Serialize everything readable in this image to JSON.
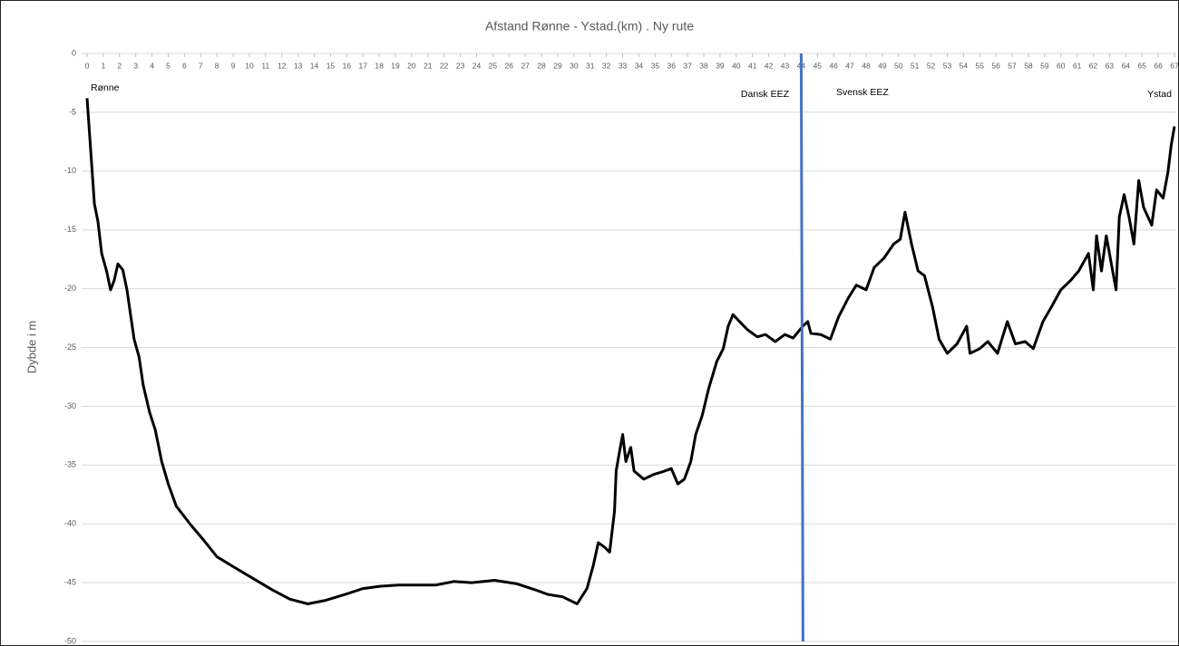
{
  "chart_data": {
    "type": "line",
    "title": "Afstand Rønne - Ystad.(km) . Ny rute",
    "y_label": "Dybde i m",
    "annotations": [
      "Rønne",
      "Dansk EEZ",
      "Svensk EEZ",
      "Ystad"
    ],
    "xlim": [
      0,
      67
    ],
    "xticks": [
      0,
      1,
      2,
      3,
      4,
      5,
      6,
      7,
      8,
      9,
      10,
      11,
      12,
      13,
      14,
      15,
      16,
      17,
      18,
      19,
      20,
      21,
      22,
      23,
      24,
      25,
      26,
      27,
      28,
      29,
      30,
      31,
      32,
      33,
      34,
      35,
      36,
      37,
      38,
      39,
      40,
      41,
      42,
      43,
      44,
      45,
      46,
      47,
      48,
      49,
      50,
      51,
      52,
      53,
      54,
      55,
      56,
      57,
      58,
      59,
      60,
      61,
      62,
      63,
      64,
      65,
      66,
      67
    ],
    "ylim": [
      -50,
      0
    ],
    "yticks": [
      0,
      -5,
      -10,
      -15,
      -20,
      -25,
      -30,
      -35,
      -40,
      -45,
      -50
    ],
    "grid": true,
    "eez_border": {
      "x": 44,
      "color": "#4472c4"
    },
    "series": [
      {
        "color": "#000000",
        "x": [
          0,
          0.2,
          0.45,
          0.67,
          0.9,
          1.2,
          1.45,
          1.67,
          1.9,
          2.2,
          2.46,
          2.7,
          2.9,
          3.2,
          3.46,
          3.85,
          4.2,
          4.6,
          5,
          5.5,
          6.4,
          7.2,
          8,
          9.2,
          10.3,
          11.4,
          12.5,
          13.6,
          14.7,
          15.9,
          17,
          18.1,
          19.2,
          21.5,
          22.6,
          23.7,
          25.1,
          26.5,
          27.6,
          28.4,
          29.3,
          30.2,
          30.8,
          31.2,
          31.5,
          31.9,
          32.2,
          32.5,
          32.6,
          32.8,
          33,
          33.2,
          33.5,
          33.7,
          34.3,
          34.9,
          35.4,
          36,
          36.4,
          36.8,
          37.2,
          37.5,
          37.9,
          38.3,
          38.8,
          39.2,
          39.5,
          39.8,
          40.2,
          40.7,
          41.3,
          41.8,
          42.4,
          43,
          43.5,
          44.1,
          44.4,
          44.6,
          45.2,
          45.8,
          46.3,
          46.9,
          47.4,
          48,
          48.5,
          49.1,
          49.7,
          50.1,
          50.4,
          50.8,
          51.2,
          51.6,
          52.1,
          52.5,
          53,
          53.6,
          54.2,
          54.4,
          55,
          55.5,
          56.1,
          56.7,
          57.2,
          57.8,
          58.3,
          58.9,
          59.4,
          60,
          60.6,
          61.1,
          61.7,
          62,
          62.2,
          62.5,
          62.8,
          63.4,
          63.6,
          63.9,
          64.2,
          64.5,
          64.8,
          65.1,
          65.6,
          65.9,
          66.3,
          66.6,
          66.8,
          67
        ],
        "values": [
          -3.8,
          -7.8,
          -12.8,
          -14.3,
          -17,
          -18.5,
          -20.1,
          -19.3,
          -17.9,
          -18.4,
          -20.1,
          -22.4,
          -24.3,
          -25.8,
          -28.2,
          -30.5,
          -32,
          -34.7,
          -36.6,
          -38.5,
          -40.1,
          -41.4,
          -42.8,
          -43.8,
          -44.7,
          -45.6,
          -46.4,
          -46.8,
          -46.5,
          -46,
          -45.5,
          -45.3,
          -45.2,
          -45.2,
          -44.9,
          -45,
          -44.8,
          -45.1,
          -45.6,
          -46,
          -46.2,
          -46.8,
          -45.5,
          -43.5,
          -41.6,
          -42,
          -42.4,
          -38.9,
          -35.5,
          -33.9,
          -32.4,
          -34.7,
          -33.5,
          -35.5,
          -36.2,
          -35.8,
          -35.6,
          -35.3,
          -36.6,
          -36.2,
          -34.7,
          -32.4,
          -30.8,
          -28.5,
          -26.2,
          -25.1,
          -23.2,
          -22.2,
          -22.8,
          -23.5,
          -24.1,
          -23.9,
          -24.5,
          -23.9,
          -24.2,
          -23.2,
          -22.8,
          -23.8,
          -23.9,
          -24.3,
          -22.4,
          -20.8,
          -19.7,
          -20.1,
          -18.2,
          -17.4,
          -16.2,
          -15.8,
          -13.5,
          -16.2,
          -18.5,
          -18.9,
          -21.6,
          -24.3,
          -25.5,
          -24.7,
          -23.2,
          -25.5,
          -25.1,
          -24.5,
          -25.5,
          -22.8,
          -24.7,
          -24.5,
          -25.1,
          -22.8,
          -21.6,
          -20.1,
          -19.3,
          -18.5,
          -17,
          -20.1,
          -15.5,
          -18.5,
          -15.5,
          -20.1,
          -13.9,
          -12,
          -13.9,
          -16.2,
          -10.8,
          -13.1,
          -14.6,
          -11.6,
          -12.3,
          -10.1,
          -7.8,
          -6.2
        ]
      }
    ]
  }
}
